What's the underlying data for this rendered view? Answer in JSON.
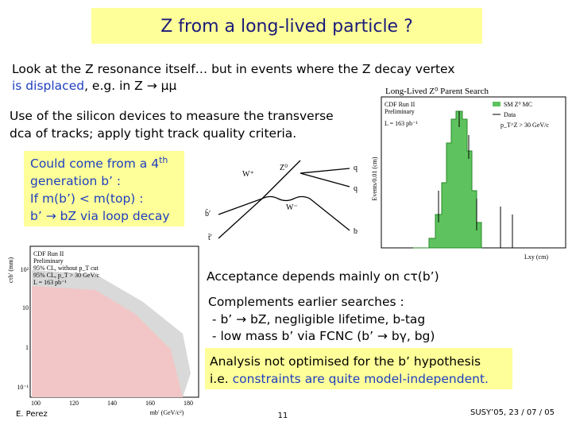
{
  "title": "Z from a long-lived particle ?",
  "intro": {
    "line1": "Look at the Z resonance itself… but in events where the Z decay vertex",
    "highlight": "is displaced",
    "rest": ", e.g. in Z → μμ"
  },
  "method": [
    "Use of the silicon devices to measure the transverse",
    "dca of tracks; apply tight track quality criteria."
  ],
  "motivation_box": {
    "line1": "Could come from a 4",
    "sup": "th",
    "lines": [
      "generation b’ :",
      "If m(b’) < m(top) :",
      "b’ → bZ via loop decay"
    ]
  },
  "diagram": {
    "labels": [
      "W⁺",
      "Z⁰",
      "q",
      "q",
      "W⁻",
      "b̄′",
      "t̄′",
      "b"
    ]
  },
  "histogram_plot": {
    "title": "Long-Lived Z⁰ Parent Search",
    "experiment": [
      "CDF Run II",
      "Preliminary"
    ],
    "lumi": "L = 163 pb⁻¹",
    "legend": [
      "SM Z⁰ MC",
      "Data",
      "p_T^Z > 30 GeV/c"
    ],
    "y_label": "Events/0.01 (cm)",
    "x_label": "Lxy (cm)"
  },
  "limit_plot": {
    "experiment": [
      "CDF Run II",
      "Preliminary"
    ],
    "lumi": "L = 163 pb⁻¹",
    "legend": [
      "95% CL, without p_T cut",
      "95% CL, p_T > 30 GeV/c"
    ],
    "y_label": "cτb′ (mm)",
    "x_label": "mb′ (GeV/c²)",
    "x_ticks": [
      "100",
      "120",
      "140",
      "160",
      "180"
    ],
    "y_ticks": [
      "10²",
      "10",
      "1",
      "10⁻¹"
    ]
  },
  "acceptance": "Acceptance depends mainly on cτ(b’)",
  "complements": [
    "Complements earlier searches :",
    " - b’ → bZ, negligible lifetime, b-tag",
    " - low mass b’ via FCNC (b’ → bγ, bg)"
  ],
  "conclusion_box": {
    "line1": "Analysis not optimised for the b’ hypothesis",
    "prefix": "i.e. ",
    "highlight": "constraints are quite model-independent."
  },
  "footer": {
    "author": "E. Perez",
    "page": "11",
    "event": "SUSY’05, 23 / 07 / 05"
  }
}
